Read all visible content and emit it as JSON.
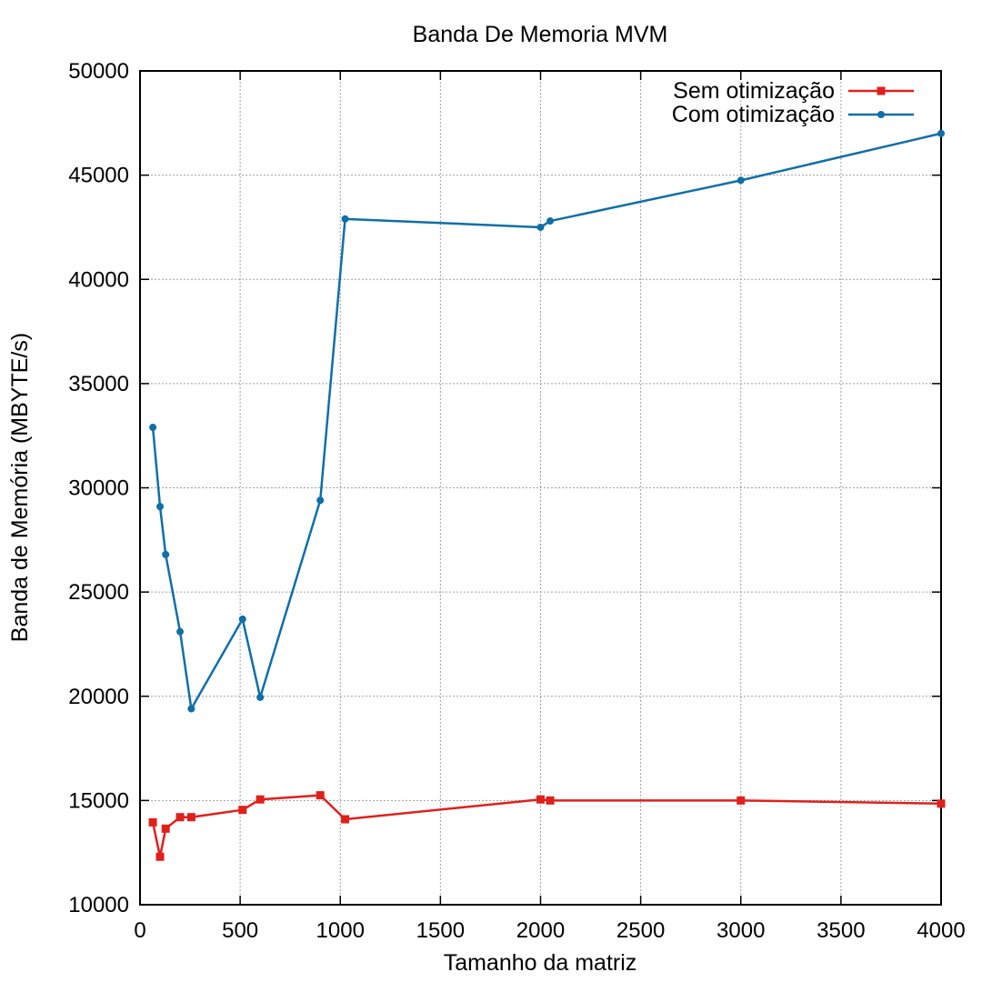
{
  "chart_data": {
    "type": "line",
    "title": "Banda De Memoria MVM",
    "xlabel": "Tamanho da matriz",
    "ylabel": "Banda de Memória (MBYTE/s)",
    "xlim": [
      0,
      4000
    ],
    "ylim": [
      10000,
      50000
    ],
    "xticks": [
      0,
      500,
      1000,
      1500,
      2000,
      2500,
      3000,
      3500,
      4000
    ],
    "yticks": [
      10000,
      15000,
      20000,
      25000,
      30000,
      35000,
      40000,
      45000,
      50000
    ],
    "grid": true,
    "legend_position": "top-right",
    "series": [
      {
        "name": "Sem otimização",
        "color": "#e0201b",
        "marker": "square",
        "points": [
          [
            64,
            13950
          ],
          [
            100,
            12300
          ],
          [
            128,
            13650
          ],
          [
            200,
            14200
          ],
          [
            256,
            14200
          ],
          [
            512,
            14550
          ],
          [
            600,
            15050
          ],
          [
            900,
            15250
          ],
          [
            1024,
            14100
          ],
          [
            2000,
            15050
          ],
          [
            2048,
            15000
          ],
          [
            3000,
            15000
          ],
          [
            4000,
            14850
          ]
        ]
      },
      {
        "name": "Com otimização",
        "color": "#0f6fa8",
        "marker": "circle",
        "points": [
          [
            64,
            32900
          ],
          [
            100,
            29100
          ],
          [
            128,
            26800
          ],
          [
            200,
            23100
          ],
          [
            256,
            19400
          ],
          [
            512,
            23700
          ],
          [
            600,
            19950
          ],
          [
            900,
            29400
          ],
          [
            1024,
            42900
          ],
          [
            2000,
            42500
          ],
          [
            2048,
            42800
          ],
          [
            3000,
            44750
          ],
          [
            4000,
            47000
          ]
        ]
      }
    ]
  }
}
